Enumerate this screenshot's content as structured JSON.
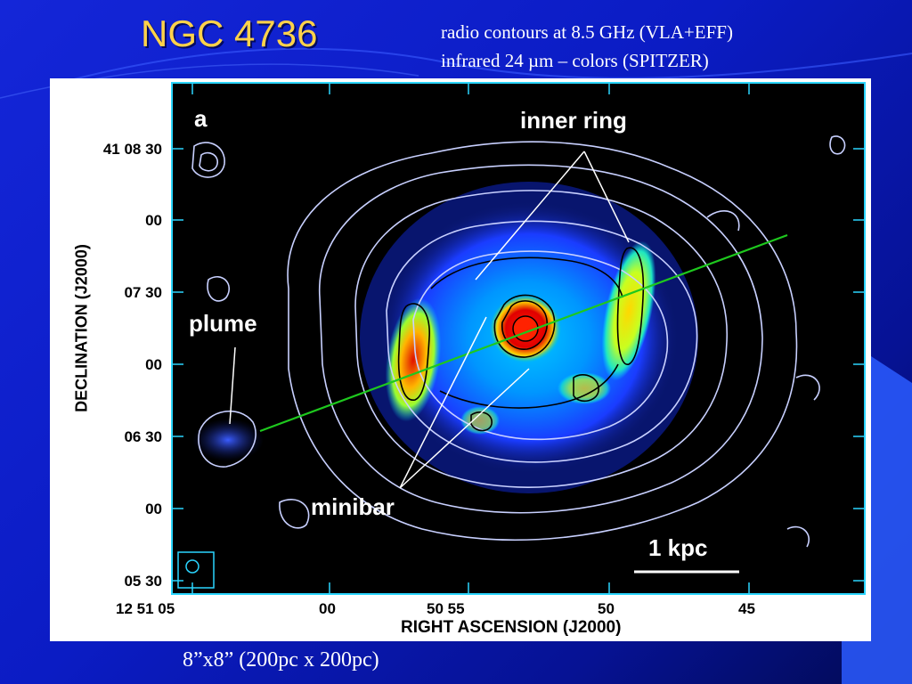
{
  "slide": {
    "title": "NGC 4736",
    "caption_line1": "radio contours at 8.5 GHz  (VLA+EFF)",
    "caption_line2": "infrared 24 µm – colors  (SPITZER)",
    "footer": "8”x8”  (200pc x 200pc)"
  },
  "figure": {
    "panel_label": "a",
    "annotations": {
      "inner_ring": "inner ring",
      "plume": "plume",
      "minibar": "minibar",
      "scale_bar": "1 kpc"
    },
    "y_axis": {
      "title": "DECLINATION (J2000)",
      "ticks": [
        "41 08 30",
        "00",
        "07 30",
        "00",
        "06 30",
        "00",
        "05 30"
      ]
    },
    "x_axis": {
      "title": "RIGHT ASCENSION (J2000)",
      "ticks": [
        "12 51 05",
        "00",
        "50 55",
        "50",
        "45"
      ]
    },
    "colors": {
      "frame": "#2ad5ff",
      "contours": "#c8d0ff",
      "inner_contours": "#000000",
      "major_axis_line": "#1ec81e",
      "ir_low": "#0a2cff",
      "ir_mid": "#00e6ff",
      "ir_high": "#ffe600",
      "ir_peak": "#e00000"
    }
  }
}
